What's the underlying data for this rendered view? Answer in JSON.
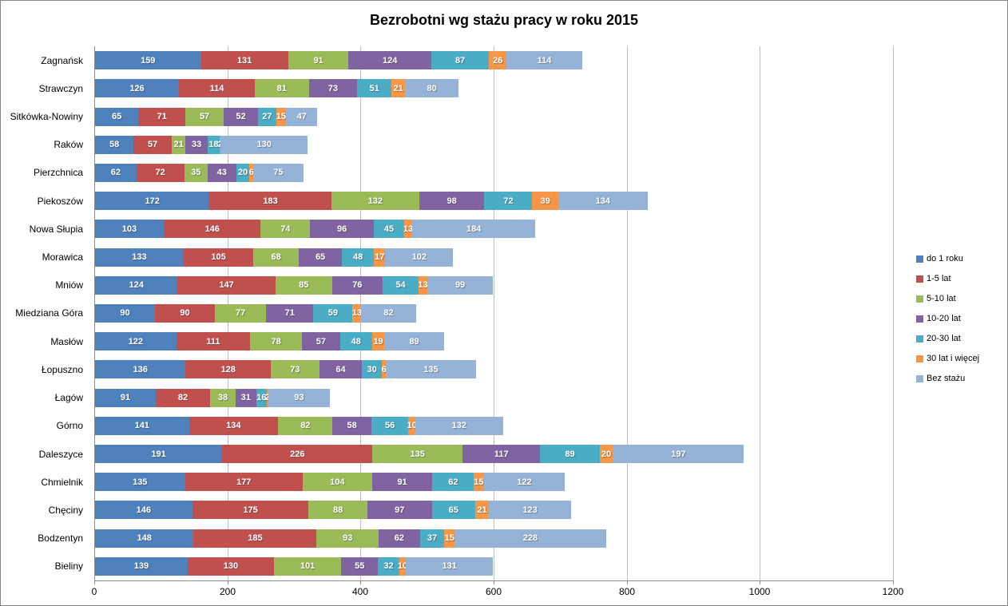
{
  "chart_data": {
    "type": "bar",
    "orientation": "horizontal",
    "stacked": true,
    "title": "Bezrobotni wg stażu pracy w roku 2015",
    "xlabel": "",
    "ylabel": "",
    "xlim": [
      0,
      1200
    ],
    "x_ticks": [
      0,
      200,
      400,
      600,
      800,
      1000,
      1200
    ],
    "grid": "vertical",
    "legend_position": "right",
    "categories": [
      "Zagnańsk",
      "Strawczyn",
      "Sitkówka-Nowiny",
      "Raków",
      "Pierzchnica",
      "Piekoszów",
      "Nowa Słupia",
      "Morawica",
      "Mniów",
      "Miedziana Góra",
      "Masłów",
      "Łopuszno",
      "Łagów",
      "Górno",
      "Daleszyce",
      "Chmielnik",
      "Chęciny",
      "Bodzentyn",
      "Bieliny"
    ],
    "series": [
      {
        "name": "do 1 roku",
        "color": "#4F81BD",
        "values": [
          159,
          126,
          65,
          58,
          62,
          172,
          103,
          133,
          124,
          90,
          122,
          136,
          91,
          141,
          191,
          135,
          146,
          148,
          139
        ]
      },
      {
        "name": "1-5 lat",
        "color": "#C0504D",
        "values": [
          131,
          114,
          71,
          57,
          72,
          183,
          146,
          105,
          147,
          90,
          111,
          128,
          82,
          134,
          226,
          177,
          175,
          185,
          130
        ]
      },
      {
        "name": "5-10 lat",
        "color": "#9BBB59",
        "values": [
          91,
          81,
          57,
          21,
          35,
          132,
          74,
          68,
          85,
          77,
          78,
          73,
          38,
          82,
          135,
          104,
          88,
          93,
          101
        ]
      },
      {
        "name": "10-20 lat",
        "color": "#8064A2",
        "values": [
          124,
          73,
          52,
          33,
          43,
          98,
          96,
          65,
          76,
          71,
          57,
          64,
          31,
          58,
          117,
          91,
          97,
          62,
          55
        ]
      },
      {
        "name": "20-30 lat",
        "color": "#4BACC6",
        "values": [
          87,
          51,
          27,
          18,
          20,
          72,
          45,
          48,
          54,
          59,
          48,
          30,
          16,
          56,
          89,
          62,
          65,
          37,
          32
        ]
      },
      {
        "name": "30 lat i więcej",
        "color": "#F79646",
        "values": [
          26,
          21,
          15,
          2,
          6,
          39,
          13,
          17,
          13,
          13,
          19,
          6,
          2,
          10,
          20,
          15,
          21,
          15,
          10
        ]
      },
      {
        "name": "Bez stażu",
        "color": "#95B3D7",
        "values": [
          114,
          80,
          47,
          130,
          75,
          134,
          184,
          102,
          99,
          82,
          89,
          135,
          93,
          132,
          197,
          122,
          123,
          228,
          131
        ]
      }
    ]
  }
}
